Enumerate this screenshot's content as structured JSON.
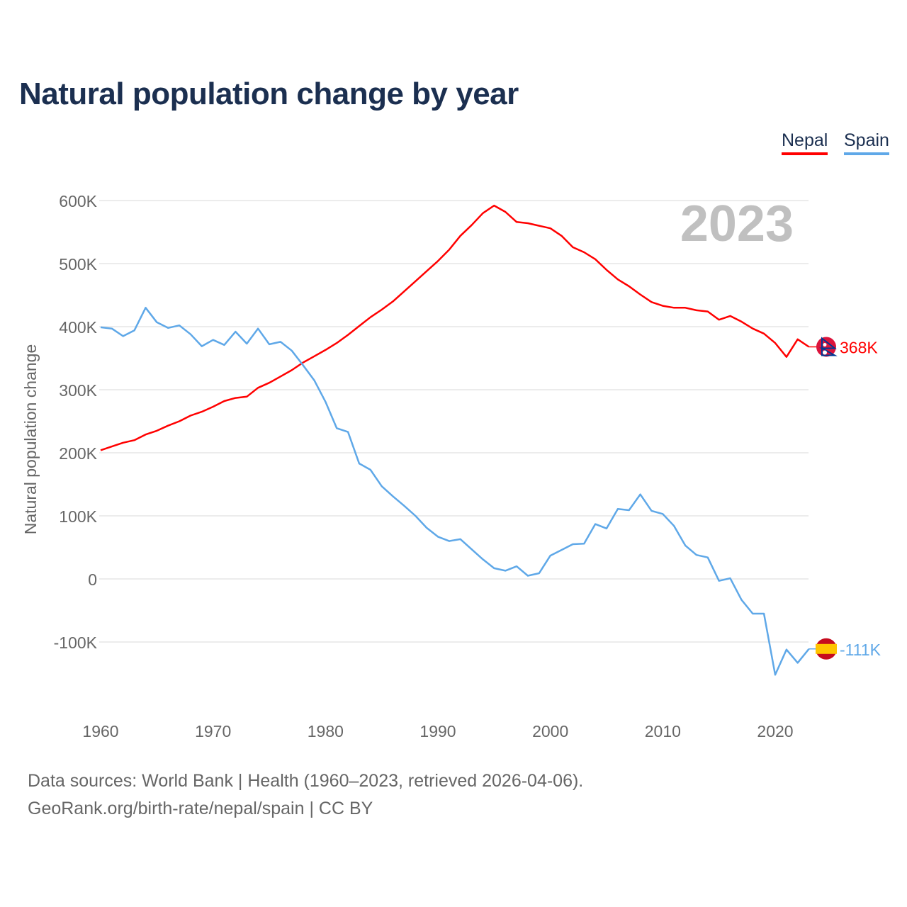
{
  "title": "Natural population change by year",
  "footer": {
    "line1": "Data sources: World Bank | Health (1960–2023, retrieved 2026-04-06).",
    "line2": "GeoRank.org/birth-rate/nepal/spain | CC BY"
  },
  "chart_data": {
    "type": "line",
    "title": "Natural population change by year",
    "xlabel": "",
    "ylabel": "Natural population change",
    "year_watermark": "2023",
    "xlim": [
      1960,
      2023
    ],
    "ylim": [
      -190000,
      610000
    ],
    "x_ticks": [
      1960,
      1970,
      1980,
      1990,
      2000,
      2010,
      2020
    ],
    "y_ticks": [
      {
        "value": 600000,
        "label": "600K"
      },
      {
        "value": 500000,
        "label": "500K"
      },
      {
        "value": 400000,
        "label": "400K"
      },
      {
        "value": 300000,
        "label": "300K"
      },
      {
        "value": 200000,
        "label": "200K"
      },
      {
        "value": 100000,
        "label": "100K"
      },
      {
        "value": 0,
        "label": "0"
      },
      {
        "value": -100000,
        "label": "-100K"
      }
    ],
    "grid": true,
    "legend": "top-right",
    "x": [
      1960,
      1961,
      1962,
      1963,
      1964,
      1965,
      1966,
      1967,
      1968,
      1969,
      1970,
      1971,
      1972,
      1973,
      1974,
      1975,
      1976,
      1977,
      1978,
      1979,
      1980,
      1981,
      1982,
      1983,
      1984,
      1985,
      1986,
      1987,
      1988,
      1989,
      1990,
      1991,
      1992,
      1993,
      1994,
      1995,
      1996,
      1997,
      1998,
      1999,
      2000,
      2001,
      2002,
      2003,
      2004,
      2005,
      2006,
      2007,
      2008,
      2009,
      2010,
      2011,
      2012,
      2013,
      2014,
      2015,
      2016,
      2017,
      2018,
      2019,
      2020,
      2021,
      2022,
      2023
    ],
    "series": [
      {
        "name": "Nepal",
        "color": "#ff0000",
        "end_label": "368K",
        "values": [
          204000,
          210000,
          216000,
          220000,
          229000,
          235000,
          243000,
          250000,
          259000,
          265000,
          273000,
          282000,
          287000,
          289000,
          303000,
          311000,
          321000,
          331000,
          343000,
          353000,
          363000,
          374000,
          387000,
          401000,
          415000,
          427000,
          440000,
          456000,
          472000,
          488000,
          504000,
          522000,
          544000,
          561000,
          580000,
          592000,
          582000,
          566000,
          564000,
          560000,
          556000,
          544000,
          526000,
          518000,
          507000,
          490000,
          475000,
          464000,
          451000,
          439000,
          433000,
          430000,
          430000,
          426000,
          424000,
          411000,
          417000,
          408000,
          397000,
          389000,
          374000,
          352000,
          380000,
          368000
        ]
      },
      {
        "name": "Spain",
        "color": "#5fa8e8",
        "end_label": "-111K",
        "values": [
          399000,
          397000,
          385000,
          394000,
          430000,
          407000,
          398000,
          402000,
          388000,
          369000,
          379000,
          371000,
          392000,
          373000,
          397000,
          372000,
          376000,
          362000,
          339000,
          315000,
          281000,
          239000,
          233000,
          183000,
          173000,
          147000,
          131000,
          116000,
          100000,
          81000,
          67000,
          60000,
          63000,
          47000,
          31000,
          17000,
          13000,
          20000,
          5000,
          9000,
          37000,
          46000,
          55000,
          56000,
          87000,
          80000,
          111000,
          109000,
          134000,
          108000,
          103000,
          84000,
          53000,
          38000,
          34000,
          -3000,
          1000,
          -33000,
          -55000,
          -55000,
          -152000,
          -112000,
          -133000,
          -111000
        ]
      }
    ]
  }
}
